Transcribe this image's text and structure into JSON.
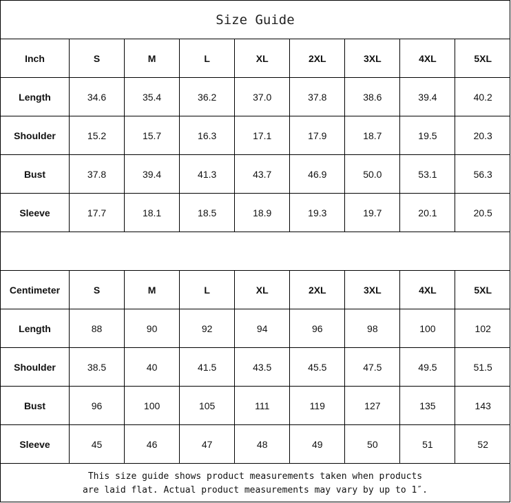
{
  "title": "Size Guide",
  "tables": [
    {
      "unit": "Inch",
      "sizes": [
        "S",
        "M",
        "L",
        "XL",
        "2XL",
        "3XL",
        "4XL",
        "5XL"
      ],
      "rows": [
        {
          "label": "Length",
          "values": [
            "34.6",
            "35.4",
            "36.2",
            "37.0",
            "37.8",
            "38.6",
            "39.4",
            "40.2"
          ]
        },
        {
          "label": "Shoulder",
          "values": [
            "15.2",
            "15.7",
            "16.3",
            "17.1",
            "17.9",
            "18.7",
            "19.5",
            "20.3"
          ]
        },
        {
          "label": "Bust",
          "values": [
            "37.8",
            "39.4",
            "41.3",
            "43.7",
            "46.9",
            "50.0",
            "53.1",
            "56.3"
          ]
        },
        {
          "label": "Sleeve",
          "values": [
            "17.7",
            "18.1",
            "18.5",
            "18.9",
            "19.3",
            "19.7",
            "20.1",
            "20.5"
          ]
        }
      ]
    },
    {
      "unit": "Centimeter",
      "sizes": [
        "S",
        "M",
        "L",
        "XL",
        "2XL",
        "3XL",
        "4XL",
        "5XL"
      ],
      "rows": [
        {
          "label": "Length",
          "values": [
            "88",
            "90",
            "92",
            "94",
            "96",
            "98",
            "100",
            "102"
          ]
        },
        {
          "label": "Shoulder",
          "values": [
            "38.5",
            "40",
            "41.5",
            "43.5",
            "45.5",
            "47.5",
            "49.5",
            "51.5"
          ]
        },
        {
          "label": "Bust",
          "values": [
            "96",
            "100",
            "105",
            "111",
            "119",
            "127",
            "135",
            "143"
          ]
        },
        {
          "label": "Sleeve",
          "values": [
            "45",
            "46",
            "47",
            "48",
            "49",
            "50",
            "51",
            "52"
          ]
        }
      ]
    }
  ],
  "footer": {
    "line1": "This size guide shows product measurements taken when products",
    "line2": "are laid flat. Actual product measurements may vary by up to 1″."
  }
}
